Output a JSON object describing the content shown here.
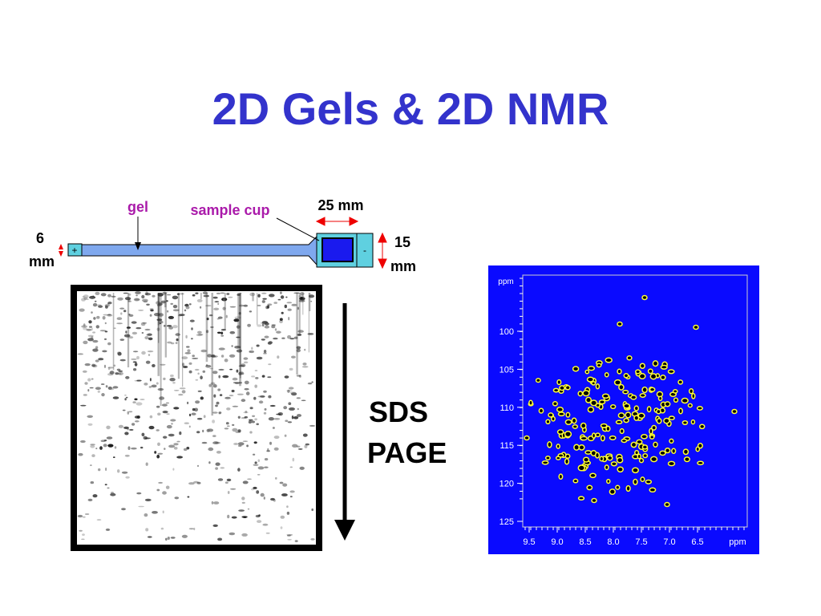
{
  "title": "2D Gels & 2D NMR",
  "diagram": {
    "gel_label": "gel",
    "cup_label": "sample cup",
    "length_label": "25 mm",
    "left_dim": [
      "6",
      "mm"
    ],
    "right_dim": [
      "15",
      "mm"
    ],
    "plus": "+",
    "minus": "-"
  },
  "sds_label": [
    "SDS",
    "PAGE"
  ],
  "nmr": {
    "y_unit": "ppm",
    "y_labels": [
      "100",
      "105",
      "110",
      "115",
      "120",
      "125"
    ],
    "x_labels": [
      "9.5",
      "9.0",
      "8.5",
      "8.0",
      "7.5",
      "7.0",
      "6.5"
    ],
    "x_unit": "ppm"
  }
}
